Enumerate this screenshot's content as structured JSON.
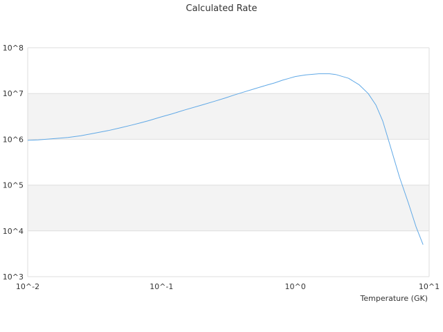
{
  "chart_data": {
    "type": "line",
    "title": "Calculated Rate",
    "xlabel": "Temperature (GK)",
    "ylabel": "",
    "x_scale": "log",
    "y_scale": "log",
    "xlim": [
      0.01,
      10
    ],
    "ylim": [
      1000,
      100000000
    ],
    "x_tick_labels": [
      "10^-2",
      "10^-1",
      "10^0",
      "10^1"
    ],
    "y_tick_labels": [
      "10^3",
      "10^4",
      "10^5",
      "10^6",
      "10^7",
      "10^8"
    ],
    "grid": true,
    "banded_background": true,
    "legend": "none",
    "line_color": "#5fa8e6",
    "band_color": "#f3f3f3",
    "series": [
      {
        "x": [
          0.01,
          0.012,
          0.015,
          0.02,
          0.025,
          0.03,
          0.04,
          0.05,
          0.06,
          0.07,
          0.08,
          0.1,
          0.12,
          0.15,
          0.2,
          0.25,
          0.3,
          0.35,
          0.4,
          0.5,
          0.6,
          0.7,
          0.8,
          0.9,
          1.0,
          1.2,
          1.5,
          1.8,
          2.0,
          2.5,
          3.0,
          3.5,
          4.0,
          4.5,
          5.0,
          6.0,
          7.0,
          8.0,
          9.0
        ],
        "y": [
          950000,
          970000,
          1020000,
          1100000,
          1200000,
          1320000,
          1550000,
          1800000,
          2050000,
          2300000,
          2550000,
          3100000,
          3600000,
          4400000,
          5600000,
          6800000,
          8000000,
          9300000,
          10500000,
          12800000,
          15000000,
          17000000,
          19500000,
          21500000,
          23500000,
          25500000,
          27000000,
          27000000,
          26000000,
          21500000,
          15500000,
          10000000,
          5600000,
          2500000,
          900000,
          150000,
          40000,
          12000,
          5000
        ]
      }
    ]
  }
}
